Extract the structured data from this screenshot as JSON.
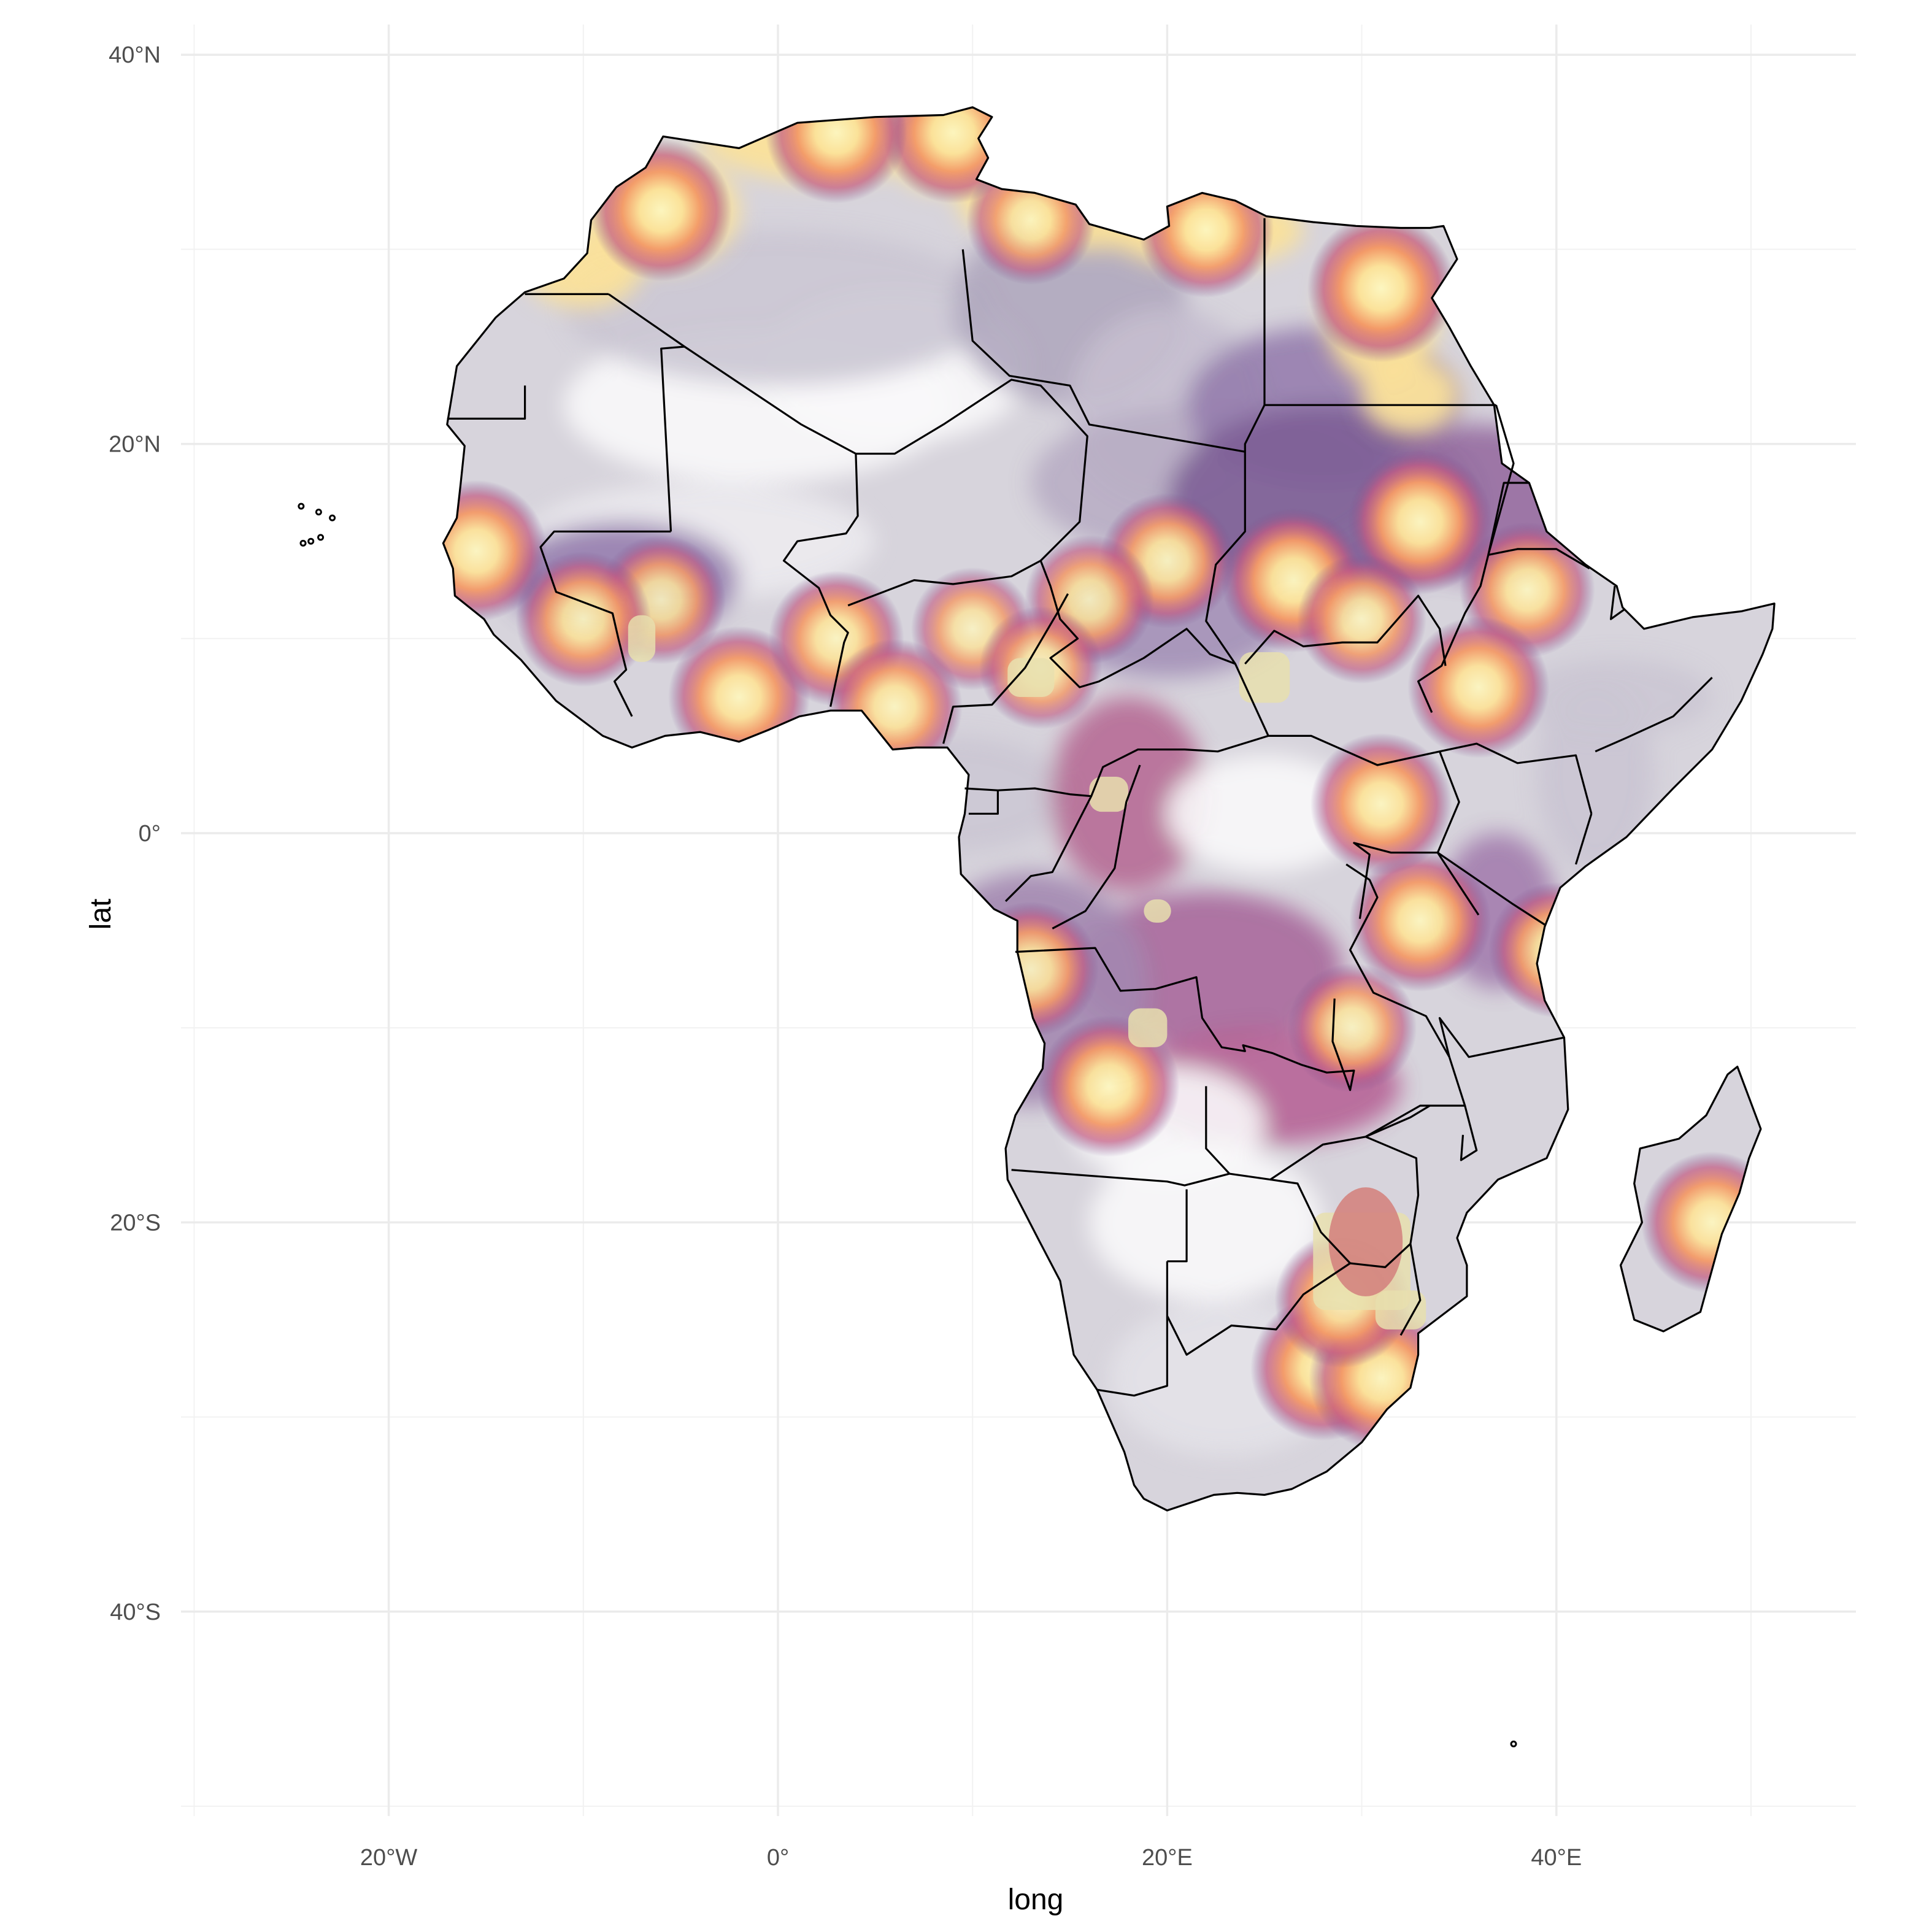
{
  "chart_data": {
    "type": "heatmap",
    "map": "Africa",
    "xlabel": "long",
    "ylabel": "lat",
    "xlim": [
      -30,
      55
    ],
    "ylim": [
      -55,
      42
    ],
    "x_ticks": [
      {
        "value": -20,
        "label": "20°W"
      },
      {
        "value": 0,
        "label": "0°"
      },
      {
        "value": 20,
        "label": "20°E"
      },
      {
        "value": 40,
        "label": "40°E"
      }
    ],
    "y_ticks": [
      {
        "value": 40,
        "label": "40°N"
      },
      {
        "value": 20,
        "label": "20°N"
      },
      {
        "value": 0,
        "label": "0°"
      },
      {
        "value": -20,
        "label": "20°S"
      },
      {
        "value": -40,
        "label": "40°S"
      }
    ],
    "grid": true,
    "legend": "none",
    "colors": {
      "background_fill": "#d7d4dc",
      "low": "#6e4a8a",
      "mid": "#c05a7c",
      "high": "#f6a262",
      "peak": "#fbf3b3",
      "border": "#000000"
    },
    "hotspots": [
      {
        "lon": 26.5,
        "lat": 13,
        "level": 0.95
      },
      {
        "lon": 33,
        "lat": 16,
        "level": 0.95
      },
      {
        "lon": 30,
        "lat": 11,
        "level": 0.7
      },
      {
        "lon": 38.5,
        "lat": 12.5,
        "level": 0.8
      },
      {
        "lon": 20,
        "lat": 14,
        "level": 0.8
      },
      {
        "lon": 16,
        "lat": 12,
        "level": 0.7
      },
      {
        "lon": 10,
        "lat": 10.5,
        "level": 0.6
      },
      {
        "lon": 13.5,
        "lat": 8.5,
        "level": 0.6
      },
      {
        "lon": -2,
        "lat": 7,
        "level": 0.9
      },
      {
        "lon": -6,
        "lat": 12,
        "level": 0.7
      },
      {
        "lon": -10,
        "lat": 11,
        "level": 0.8
      },
      {
        "lon": -15.5,
        "lat": 14.5,
        "level": 0.9
      },
      {
        "lon": 3,
        "lat": 10,
        "level": 0.8
      },
      {
        "lon": 6,
        "lat": 6.5,
        "level": 0.8
      },
      {
        "lon": 36,
        "lat": 7.5,
        "level": 0.9
      },
      {
        "lon": 33,
        "lat": -4.5,
        "level": 0.9
      },
      {
        "lon": 31,
        "lat": 1.5,
        "level": 0.9
      },
      {
        "lon": 13,
        "lat": -7,
        "level": 0.8
      },
      {
        "lon": 28,
        "lat": -27.5,
        "level": 0.95
      },
      {
        "lon": 31,
        "lat": -28,
        "level": 0.95
      },
      {
        "lon": 29,
        "lat": -24,
        "level": 0.8
      },
      {
        "lon": 17,
        "lat": -13,
        "level": 0.9
      },
      {
        "lon": 29.5,
        "lat": -10,
        "level": 0.7
      },
      {
        "lon": 48,
        "lat": -20,
        "level": 0.9
      },
      {
        "lon": 40,
        "lat": -6,
        "level": 0.8
      },
      {
        "lon": 9,
        "lat": 36,
        "level": 0.9
      },
      {
        "lon": 3,
        "lat": 36,
        "level": 0.9
      },
      {
        "lon": -6,
        "lat": 32,
        "level": 0.9
      },
      {
        "lon": 31,
        "lat": 28,
        "level": 1.0
      },
      {
        "lon": 22,
        "lat": 31,
        "level": 0.8
      },
      {
        "lon": 13,
        "lat": 31.5,
        "level": 0.7
      }
    ]
  }
}
